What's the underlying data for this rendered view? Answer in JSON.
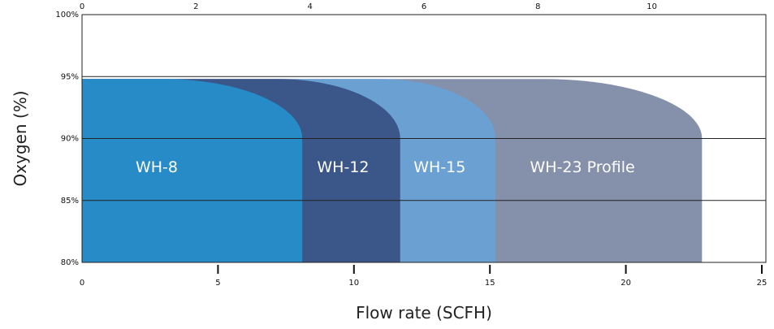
{
  "chart_data": {
    "type": "area",
    "xlabel": "Flow rate (SCFH)",
    "ylabel": "Oxygen (%)",
    "x_bottom": {
      "min": 0,
      "max": 25,
      "ticks": [
        0,
        5,
        10,
        15,
        20,
        25
      ],
      "tick_labels": [
        "0",
        "5",
        "10",
        "15",
        "20",
        "25"
      ]
    },
    "x_top": {
      "min": 0,
      "max": 12,
      "ticks": [
        0,
        2,
        4,
        6,
        8,
        10
      ],
      "tick_labels": [
        "0",
        "2",
        "4",
        "6",
        "8",
        "10"
      ]
    },
    "y": {
      "min": 80,
      "max": 100,
      "ticks": [
        80,
        85,
        90,
        95,
        100
      ],
      "tick_labels": [
        "80%",
        "85%",
        "90%",
        "95%",
        "100%"
      ]
    },
    "gridlines": [
      85,
      90,
      95
    ],
    "plateau": 94.8,
    "series": [
      {
        "name": "WH-23 Profile",
        "max_flow": 22.8,
        "drop_start": 17.0,
        "color": "#8590ab"
      },
      {
        "name": "WH-15",
        "max_flow": 15.2,
        "drop_start": 11.0,
        "color": "#6aa0d2"
      },
      {
        "name": "WH-12",
        "max_flow": 11.7,
        "drop_start": 7.2,
        "color": "#3b5688"
      },
      {
        "name": "WH-8",
        "max_flow": 8.1,
        "drop_start": 3.0,
        "color": "#268bc6"
      }
    ]
  }
}
